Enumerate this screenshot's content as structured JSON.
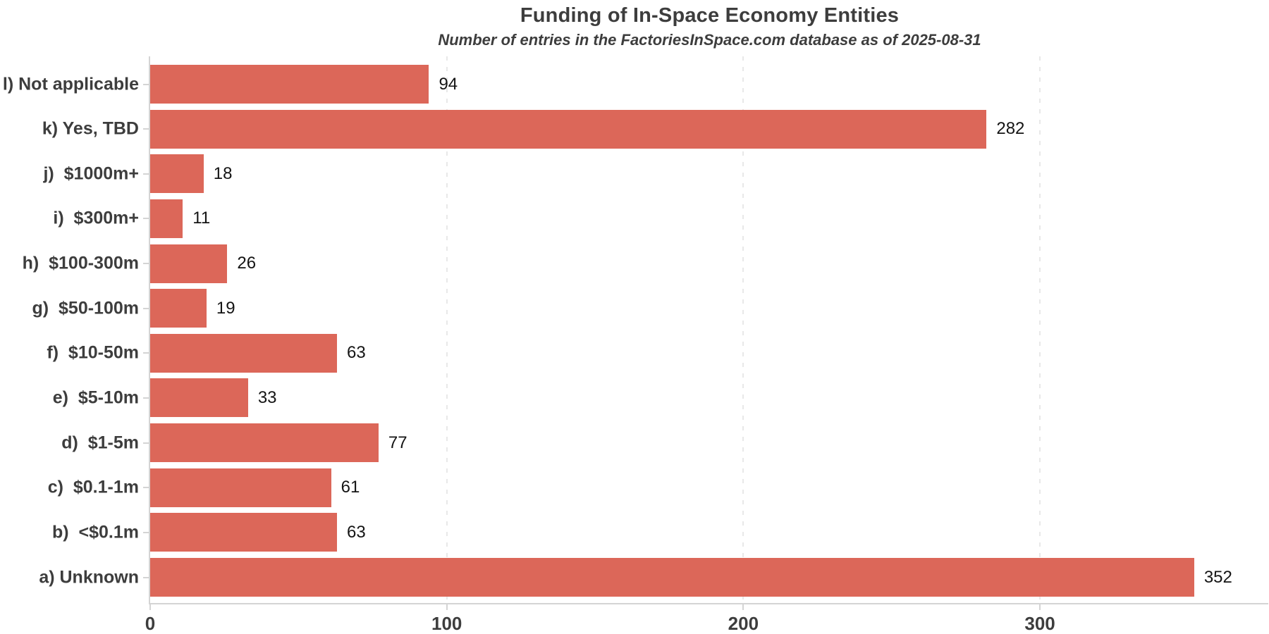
{
  "header": {
    "title": "Funding of In-Space Economy Entities",
    "subtitle": "Number of entries in the FactoriesInSpace.com database as of 2025-08-31"
  },
  "chart_data": {
    "type": "bar",
    "orientation": "horizontal",
    "title": "Funding of In-Space Economy Entities",
    "subtitle": "Number of entries in the FactoriesInSpace.com database as of 2025-08-31",
    "categories": [
      "l) Not applicable",
      "k) Yes, TBD",
      "j)  $1000m+",
      "i)  $300m+",
      "h)  $100-300m",
      "g)  $50-100m",
      "f)  $10-50m",
      "e)  $5-10m",
      "d)  $1-5m",
      "c)  $0.1-1m",
      "b)  <$0.1m",
      "a) Unknown"
    ],
    "values": [
      94,
      282,
      18,
      11,
      26,
      19,
      63,
      33,
      77,
      61,
      63,
      352
    ],
    "value_labels": [
      "94",
      "282",
      "18",
      "11",
      "26",
      "19",
      "63",
      "33",
      "77",
      "61",
      "63",
      "352"
    ],
    "xlabel": "",
    "ylabel": "",
    "xticks": [
      0,
      100,
      200,
      300
    ],
    "xlim": [
      0,
      377
    ],
    "grid": "vertical-dashed-at-xticks",
    "legend": "none",
    "colors": {
      "bar": "#dc6759",
      "axis": "#d4d4d4",
      "gridline": "#e8e8e8",
      "title_text": "#3d3d3d",
      "label_text": "#3d3d3d",
      "value_text": "#141414",
      "background": "#ffffff"
    }
  }
}
